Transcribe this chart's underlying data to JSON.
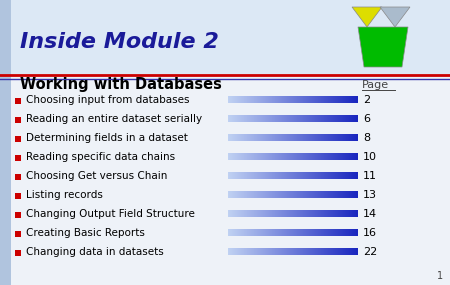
{
  "title": "Inside Module 2",
  "section_title": "Working with Databases",
  "page_label": "Page",
  "items": [
    {
      "text": "Choosing input from databases",
      "page": "2"
    },
    {
      "text": "Reading an entire dataset serially",
      "page": "6"
    },
    {
      "text": "Determining fields in a dataset",
      "page": "8"
    },
    {
      "text": "Reading specific data chains",
      "page": "10"
    },
    {
      "text": "Choosing Get versus Chain",
      "page": "11"
    },
    {
      "text": "Listing records",
      "page": "13"
    },
    {
      "text": "Changing Output Field Structure",
      "page": "14"
    },
    {
      "text": "Creating Basic Reports",
      "page": "16"
    },
    {
      "text": "Changing data in datasets",
      "page": "22"
    }
  ],
  "bg_color": "#eef2f8",
  "header_bg": "#dce8f5",
  "title_color": "#1a1a99",
  "section_title_color": "#000000",
  "bullet_color": "#cc0000",
  "left_stripe_color": "#b0c4de",
  "top_line_color1": "#cc0000",
  "top_line_color2": "#3333aa",
  "page_number": "1",
  "tri_yellow": "#dddd00",
  "tri_blue": "#aabbcc",
  "tri_green": "#00bb00"
}
